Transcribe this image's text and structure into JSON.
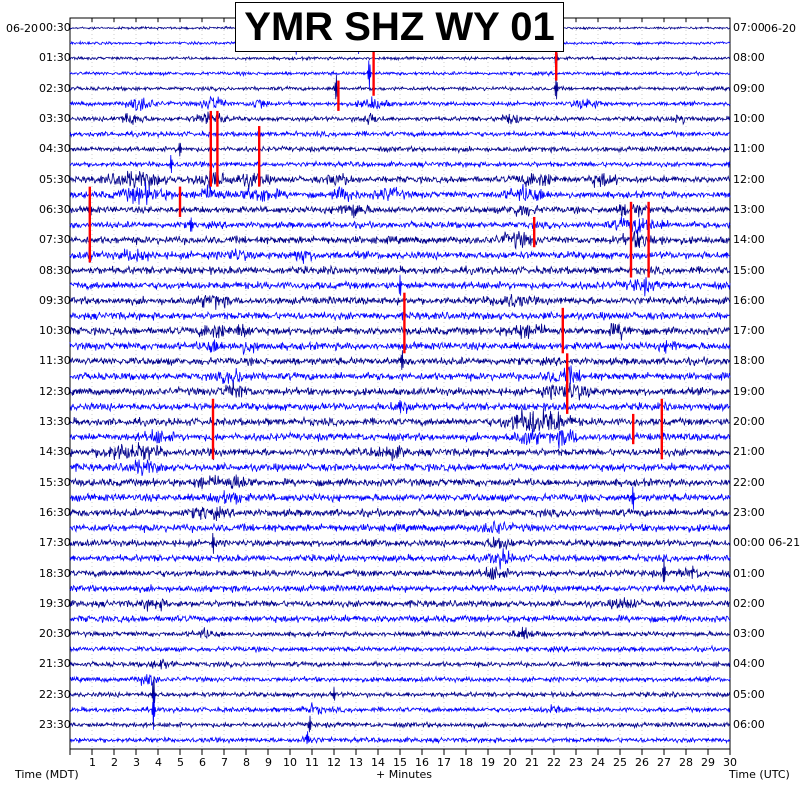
{
  "chart_data": {
    "type": "line",
    "title": "YMR SHZ WY 01",
    "date_left": "06-20",
    "date_right": "06-20",
    "xlabel_left": "Time (MDT)",
    "xlabel_center": "+ Minutes",
    "xlabel_right": "Time (UTC)",
    "xlim": [
      0,
      30
    ],
    "x_ticks": [
      "1",
      "2",
      "3",
      "4",
      "5",
      "6",
      "7",
      "8",
      "9",
      "10",
      "11",
      "12",
      "13",
      "14",
      "15",
      "16",
      "17",
      "18",
      "19",
      "20",
      "21",
      "22",
      "23",
      "24",
      "25",
      "26",
      "27",
      "28",
      "29",
      "30"
    ],
    "left_hour_labels": [
      "00:30",
      "01:30",
      "02:30",
      "03:30",
      "04:30",
      "05:30",
      "06:30",
      "07:30",
      "08:30",
      "09:30",
      "10:30",
      "11:30",
      "12:30",
      "13:30",
      "14:30",
      "15:30",
      "16:30",
      "17:30",
      "18:30",
      "19:30",
      "20:30",
      "21:30",
      "22:30",
      "23:30"
    ],
    "right_hour_labels": [
      "07:00",
      "08:00",
      "09:00",
      "10:00",
      "11:00",
      "12:00",
      "13:00",
      "14:00",
      "15:00",
      "16:00",
      "17:00",
      "18:00",
      "19:00",
      "20:00",
      "21:00",
      "22:00",
      "23:00",
      "00:00 06-21",
      "01:00",
      "02:00",
      "03:00",
      "04:00",
      "05:00",
      "06:00"
    ],
    "trace_count": 48,
    "trace_minutes": 30,
    "trace_colors": [
      "#00008b",
      "#0000ff"
    ],
    "clip_color": "#ff0000",
    "grid": true
  }
}
